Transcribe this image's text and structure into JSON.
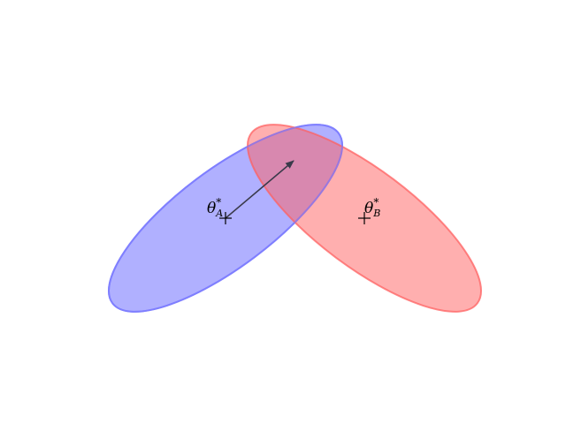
{
  "diagram": {
    "ellipses": [
      {
        "id": "A",
        "label_symbol": "θ",
        "label_sub": "A",
        "label_sup": "*",
        "fill": "#b0b0ff",
        "stroke": "#7f7fff"
      },
      {
        "id": "B",
        "label_symbol": "θ",
        "label_sub": "B",
        "label_sup": "*",
        "fill": "#ffb0b0",
        "stroke": "#ff7f7f"
      }
    ],
    "overlap_fill": "#c573b2",
    "arrow_color": "#3a3a4a",
    "marker_color": "#000000"
  }
}
